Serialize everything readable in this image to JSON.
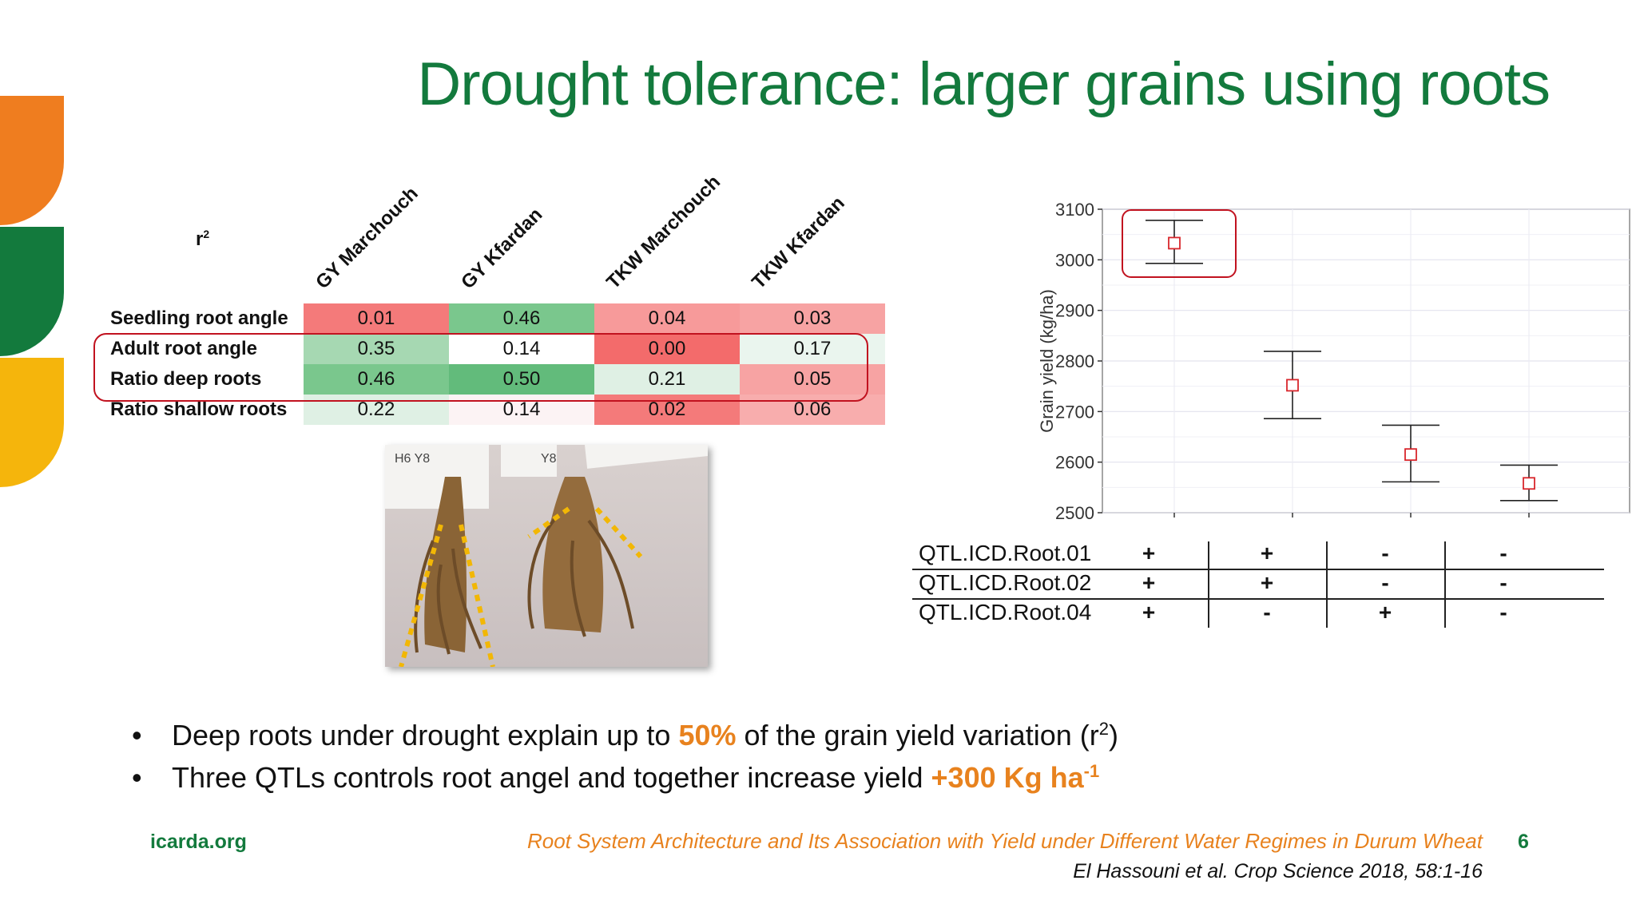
{
  "title": "Drought tolerance: larger grains using roots",
  "colors": {
    "title_green": "#137a3d",
    "accent_orange": "#e8821e",
    "highlight_red": "#c1121f"
  },
  "correlation_table": {
    "corner_label": "r",
    "corner_sup": "2",
    "columns": [
      "GY Marchouch",
      "GY Kfardan",
      "TKW Marchouch",
      "TKW Kfardan"
    ],
    "rows": [
      {
        "label": "Seedling root angle",
        "values": [
          "0.01",
          "0.46",
          "0.04",
          "0.03"
        ],
        "colors": [
          "#f47a7a",
          "#7ac78d",
          "#f79a9a",
          "#f7a3a3"
        ]
      },
      {
        "label": "Adult root angle",
        "values": [
          "0.35",
          "0.14",
          "0.00",
          "0.17"
        ],
        "colors": [
          "#a6d8b2",
          "#ffffff",
          "#f36b6b",
          "#eaf5ee"
        ]
      },
      {
        "label": "Ratio deep roots",
        "values": [
          "0.46",
          "0.50",
          "0.21",
          "0.05"
        ],
        "colors": [
          "#7ac78d",
          "#62bb7b",
          "#dff0e4",
          "#f7a3a3"
        ]
      },
      {
        "label": "Ratio shallow roots",
        "values": [
          "0.22",
          "0.14",
          "0.02",
          "0.06"
        ],
        "colors": [
          "#dff0e4",
          "#fcf3f4",
          "#f47a7a",
          "#f8adad"
        ]
      }
    ]
  },
  "photo": {
    "description_icon": "root-photo",
    "tag_labels": [
      "H6 Y8",
      "Y8"
    ]
  },
  "chart_data": {
    "type": "scatter",
    "ylabel": "Grain yield (kg/ha)",
    "ylim": [
      2500,
      3100
    ],
    "yticks": [
      2500,
      2600,
      2700,
      2800,
      2900,
      3000,
      3100
    ],
    "groups": [
      "+++",
      "++-",
      "--+",
      "---"
    ],
    "means": [
      3033,
      2752,
      2615,
      2558
    ],
    "err_low": [
      2993,
      2686,
      2561,
      2524
    ],
    "err_high": [
      3078,
      2819,
      2673,
      2594
    ],
    "highlight_group": 0
  },
  "qtl_table": {
    "rows": [
      {
        "name": "QTL.ICD.Root.01",
        "signs": [
          "+",
          "+",
          "-",
          "-"
        ]
      },
      {
        "name": "QTL.ICD.Root.02",
        "signs": [
          "+",
          "+",
          "-",
          "-"
        ]
      },
      {
        "name": "QTL.ICD.Root.04",
        "signs": [
          "+",
          "-",
          "+",
          "-"
        ]
      }
    ]
  },
  "bullets": [
    {
      "mark": "•",
      "pre": "Deep roots under drought explain up to ",
      "highlight": "50%",
      "post": " of the grain yield variation (r",
      "post_sup": "2",
      "post_end": ")"
    },
    {
      "mark": "•",
      "pre": "Three QTLs controls root angel and together increase yield ",
      "highlight": "+300 Kg ha",
      "highlight_sup": "-1"
    }
  ],
  "footer": {
    "site": "icarda.org",
    "reference": "Root System Architecture and Its Association with Yield under Different Water Regimes in Durum Wheat",
    "citation": "El Hassouni et al. Crop Science 2018, 58:1-16",
    "page_number": "6"
  }
}
